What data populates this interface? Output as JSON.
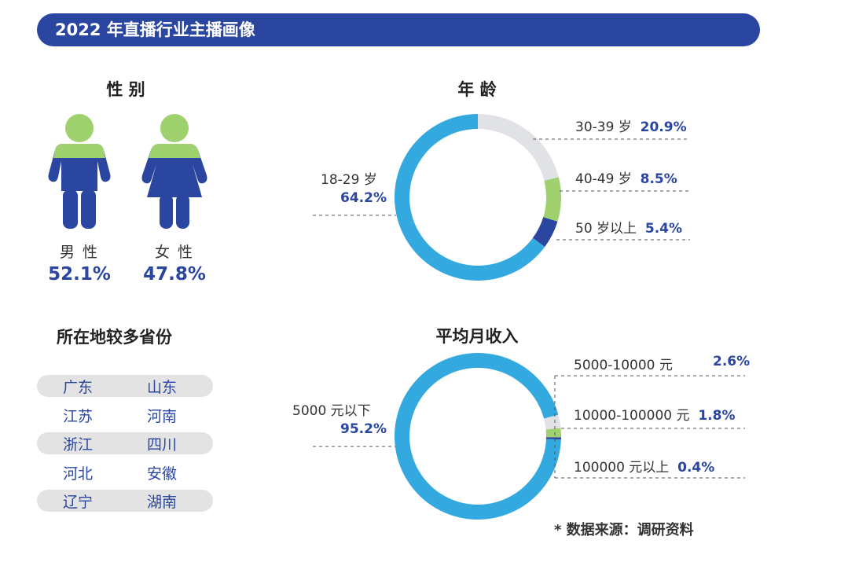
{
  "header": {
    "title": "2022 年直播行业主播画像"
  },
  "gender": {
    "title": "性 别",
    "male": {
      "label": "男 性",
      "value": "52.1%"
    },
    "female": {
      "label": "女 性",
      "value": "47.8%"
    }
  },
  "provinces": {
    "title": "所在地较多省份",
    "rows": [
      [
        "广东",
        "山东"
      ],
      [
        "江苏",
        "河南"
      ],
      [
        "浙江",
        "四川"
      ],
      [
        "河北",
        "安徽"
      ],
      [
        "辽宁",
        "湖南"
      ]
    ]
  },
  "colors": {
    "header": "#2a46a0",
    "blue_light": "#34a9e0",
    "gray": "#e0e2e6",
    "green": "#9fd16e",
    "navy": "#2a46a0"
  },
  "chart_data": [
    {
      "type": "pie",
      "title": "年 龄",
      "slices": [
        {
          "name": "18-29 岁",
          "value": 64.2,
          "label": "64.2%",
          "color": "#34a9e0"
        },
        {
          "name": "30-39 岁",
          "value": 20.9,
          "label": "20.9%",
          "color": "#e0e2e6"
        },
        {
          "name": "40-49 岁",
          "value": 8.5,
          "label": "8.5%",
          "color": "#9fd16e"
        },
        {
          "name": "50 岁以上",
          "value": 5.4,
          "label": "5.4%",
          "color": "#2a46a0"
        }
      ]
    },
    {
      "type": "pie",
      "title": "平均月收入",
      "slices": [
        {
          "name": "5000 元以下",
          "value": 95.2,
          "label": "95.2%",
          "color": "#34a9e0"
        },
        {
          "name": "5000-10000 元",
          "value": 2.6,
          "label": "2.6%",
          "color": "#e0e2e6"
        },
        {
          "name": "10000-100000 元",
          "value": 1.8,
          "label": "1.8%",
          "color": "#9fd16e"
        },
        {
          "name": "100000 元以上",
          "value": 0.4,
          "label": "0.4%",
          "color": "#2a46a0"
        }
      ]
    }
  ],
  "note": "* 数据来源：调研资料"
}
